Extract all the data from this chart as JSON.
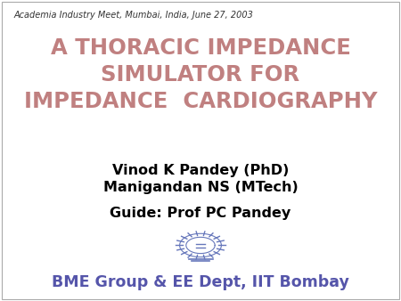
{
  "background_color": "#ffffff",
  "border_color": "#aaaaaa",
  "header_text": "Academia Industry Meet, Mumbai, India, June 27, 2003",
  "header_fontsize": 7.0,
  "header_color": "#333333",
  "title_lines": [
    "A THORACIC IMPEDANCE",
    "SIMULATOR FOR",
    "IMPEDANCE  CARDIOGRAPHY"
  ],
  "title_color": "#c08080",
  "title_fontsize": 17.5,
  "authors_lines": [
    "Vinod K Pandey (PhD)",
    "Manigandan NS (MTech)"
  ],
  "authors_color": "#000000",
  "authors_fontsize": 11.5,
  "guide_text": "Guide: Prof PC Pandey",
  "guide_color": "#000000",
  "guide_fontsize": 11.5,
  "institute_text": "BME Group & EE Dept, IIT Bombay",
  "institute_color": "#5555aa",
  "institute_fontsize": 12.5,
  "emblem_color": "#6677bb"
}
